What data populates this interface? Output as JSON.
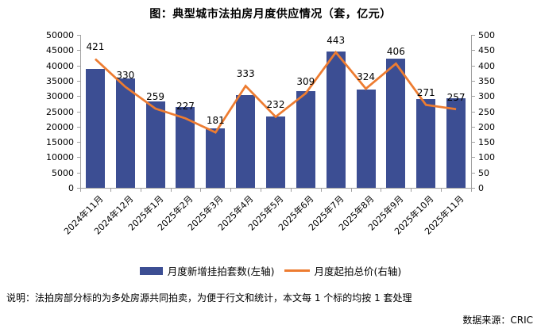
{
  "title": "图：典型城市法拍房月度供应情况（套，亿元）",
  "note": "说明：法拍房部分标的为多处房源共同拍卖，为便于行文和统计，本文每 1 个标的均按 1 套处理",
  "source": "数据来源：CRIC",
  "colors": {
    "bar": "#3C4E93",
    "line": "#ED7C31",
    "axis": "#A0A0A0",
    "text": "#000000",
    "background": "#FFFFFF"
  },
  "legend": {
    "bar_label": "月度新增挂拍套数(左轴)",
    "line_label": "月度起拍总价(右轴)"
  },
  "chart_data": {
    "type": "bar",
    "subtype": "bar-line-combo",
    "title": "图：典型城市法拍房月度供应情况（套，亿元）",
    "categories": [
      "2024年11月",
      "2024年12月",
      "2025年1月",
      "2025年2月",
      "2025年3月",
      "2025年4月",
      "2025年5月",
      "2025年6月",
      "2025年7月",
      "2025年8月",
      "2025年9月",
      "2025年10月",
      "2025年11月"
    ],
    "series": [
      {
        "name": "月度新增挂拍套数(左轴)",
        "type": "bar",
        "axis": "left",
        "color": "#3C4E93",
        "values": [
          38900,
          35700,
          28200,
          26500,
          19400,
          30200,
          23400,
          31500,
          44500,
          32000,
          42200,
          29100,
          29400
        ]
      },
      {
        "name": "月度起拍总价(右轴)",
        "type": "line",
        "axis": "right",
        "color": "#ED7C31",
        "values": [
          421,
          330,
          259,
          227,
          181,
          333,
          232,
          309,
          443,
          324,
          406,
          271,
          257
        ],
        "data_labels": true
      }
    ],
    "left_axis": {
      "min": 0,
      "max": 50000,
      "step": 5000,
      "ticks": [
        0,
        5000,
        10000,
        15000,
        20000,
        25000,
        30000,
        35000,
        40000,
        45000,
        50000
      ]
    },
    "right_axis": {
      "min": 0,
      "max": 500,
      "step": 50,
      "ticks": [
        0,
        50,
        100,
        150,
        200,
        250,
        300,
        350,
        400,
        450,
        500
      ]
    },
    "grid": false,
    "legend_position": "bottom"
  }
}
